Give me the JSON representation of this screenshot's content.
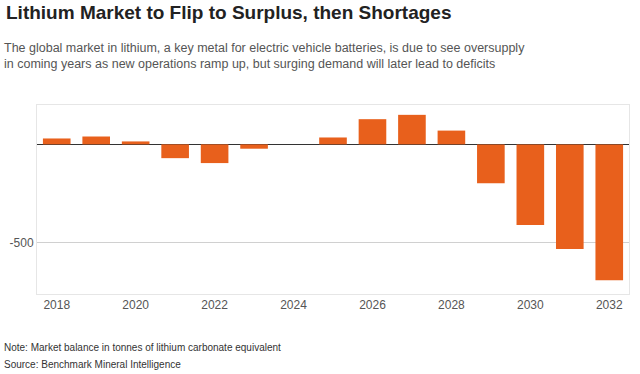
{
  "chart_data": {
    "type": "bar",
    "title": "Lithium Market to Flip to Surplus, then Shortages",
    "subtitle": "The global market in lithium, a key metal for electric vehicle batteries, is due to see oversupply in coming years as new operations ramp up, but surging demand will later lead to deficits",
    "categories": [
      2018,
      2019,
      2020,
      2021,
      2022,
      2023,
      2024,
      2025,
      2026,
      2027,
      2028,
      2029,
      2030,
      2031,
      2032
    ],
    "values": [
      30,
      40,
      15,
      -70,
      -95,
      -22,
      0,
      35,
      128,
      150,
      70,
      -197,
      -410,
      -532,
      -690
    ],
    "color": "#e8601c",
    "xlim": [
      2017.5,
      2032.5
    ],
    "xticks": [
      2018,
      2020,
      2022,
      2024,
      2026,
      2028,
      2030,
      2032
    ],
    "ylim": [
      -760,
      200
    ],
    "yticks": [
      -500
    ],
    "grid": true,
    "annotations": [
      "Note: Market balance in tonnes of lithium carbonate equivalent",
      "Source: Benchmark Mineral Intelligence"
    ]
  }
}
